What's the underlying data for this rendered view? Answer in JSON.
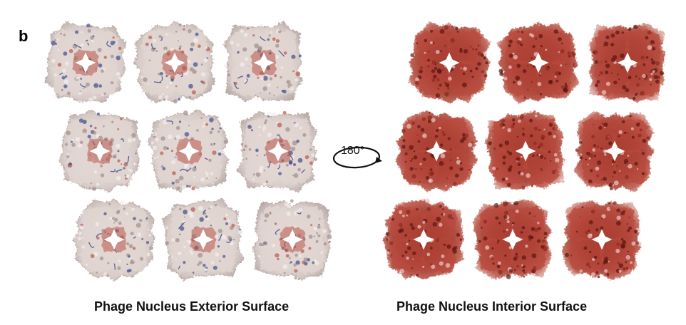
{
  "panel_label": "b",
  "rotation_label": "180°",
  "captions": {
    "exterior": "Phage Nucleus Exterior Surface",
    "interior": "Phage Nucleus Interior Surface"
  },
  "colors": {
    "exterior_base": "#e2d6d2",
    "exterior_shadow": "#9f8f8c",
    "exterior_red": "#b8584c",
    "exterior_blue": "#3d4f8f",
    "interior_base": "#8c2a20",
    "interior_mid": "#b84a3d",
    "interior_edge": "#e9c9c3",
    "interior_dark": "#5c1610"
  },
  "lattice": {
    "rows": 3,
    "cols": 3,
    "exterior_tile_count": 9,
    "interior_tile_count": 9
  }
}
